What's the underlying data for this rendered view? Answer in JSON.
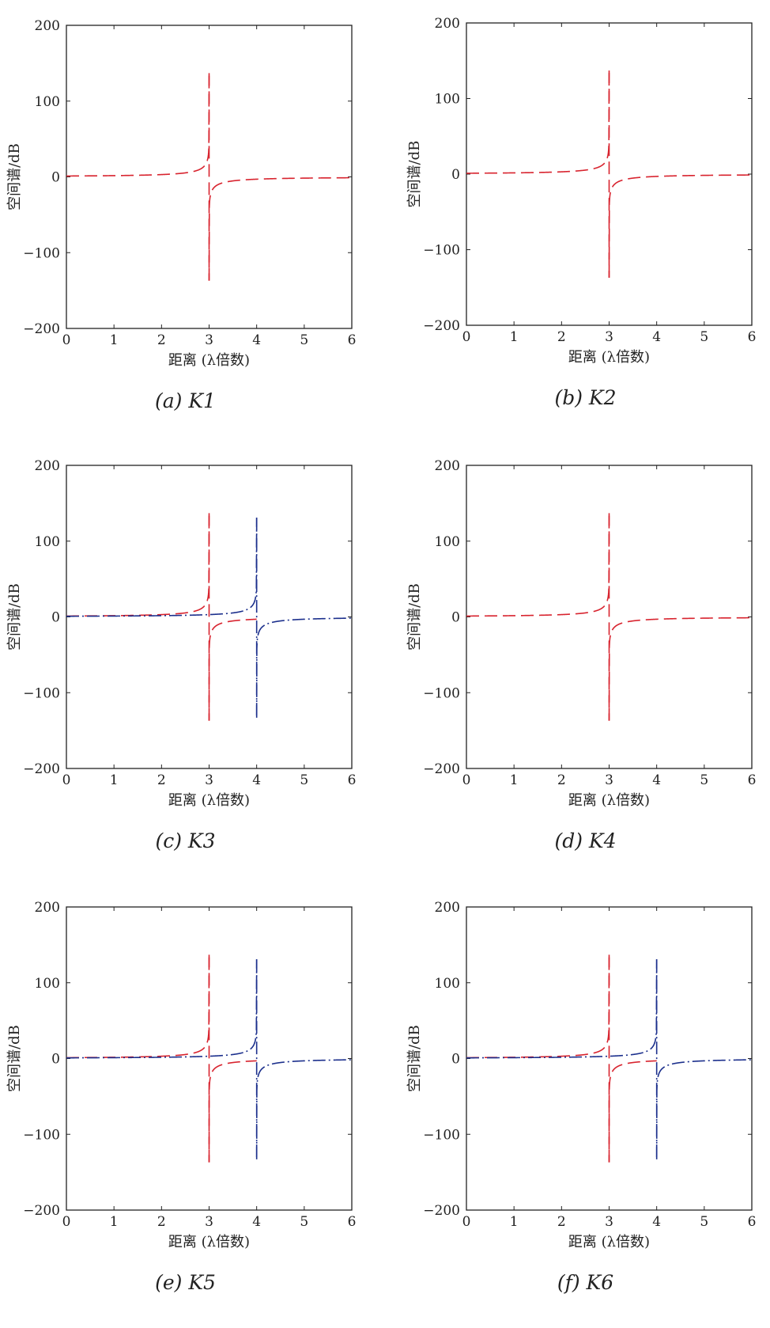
{
  "chart_data": [
    {
      "type": "line",
      "caption": "(a)  K1",
      "xlabel": "距离 (λ倍数)",
      "ylabel": "空间谱/dB",
      "xlim": [
        0,
        6
      ],
      "ylim": [
        -200,
        200
      ],
      "xticks": [
        0,
        1,
        2,
        3,
        4,
        5,
        6
      ],
      "yticks": [
        200,
        100,
        0,
        -100,
        -200
      ],
      "ytick_labels": [
        "200",
        "100",
        "0",
        "−100",
        "−200"
      ],
      "series": [
        {
          "color": "#d8232e",
          "style": "dashed",
          "peak_x": 3.0,
          "peak_max": 137,
          "peak_min": -137,
          "x_range": [
            0,
            6
          ]
        }
      ]
    },
    {
      "type": "line",
      "caption": "(b)  K2",
      "xlabel": "距离 (λ倍数)",
      "ylabel": "空间谱/dB",
      "xlim": [
        0,
        6
      ],
      "ylim": [
        -200,
        200
      ],
      "xticks": [
        0,
        1,
        2,
        3,
        4,
        5,
        6
      ],
      "yticks": [
        200,
        100,
        0,
        -100,
        -200
      ],
      "ytick_labels": [
        "200",
        "100",
        "0",
        "−100",
        "−200"
      ],
      "series": [
        {
          "color": "#d8232e",
          "style": "dashed",
          "peak_x": 3.0,
          "peak_max": 137,
          "peak_min": -137,
          "x_range": [
            0,
            6
          ]
        }
      ]
    },
    {
      "type": "line",
      "caption": "(c)  K3",
      "xlabel": "距离 (λ倍数)",
      "ylabel": "空间谱/dB",
      "xlim": [
        0,
        6
      ],
      "ylim": [
        -200,
        200
      ],
      "xticks": [
        0,
        1,
        2,
        3,
        4,
        5,
        6
      ],
      "yticks": [
        200,
        100,
        0,
        -100,
        -200
      ],
      "ytick_labels": [
        "200",
        "100",
        "0",
        "−100",
        "−200"
      ],
      "series": [
        {
          "color": "#d8232e",
          "style": "dashed",
          "peak_x": 3.0,
          "peak_max": 137,
          "peak_min": -137,
          "x_range": [
            0,
            4
          ]
        },
        {
          "color": "#1b2f8c",
          "style": "dashdot",
          "peak_x": 4.0,
          "peak_max": 131,
          "peak_min": -133,
          "x_range": [
            0,
            6
          ]
        }
      ]
    },
    {
      "type": "line",
      "caption": "(d)  K4",
      "xlabel": "距离 (λ倍数)",
      "ylabel": "空间谱/dB",
      "xlim": [
        0,
        6
      ],
      "ylim": [
        -200,
        200
      ],
      "xticks": [
        0,
        1,
        2,
        3,
        4,
        5,
        6
      ],
      "yticks": [
        200,
        100,
        0,
        -100,
        -200
      ],
      "ytick_labels": [
        "200",
        "100",
        "0",
        "−100",
        "−200"
      ],
      "series": [
        {
          "color": "#d8232e",
          "style": "dashed",
          "peak_x": 3.0,
          "peak_max": 137,
          "peak_min": -137,
          "x_range": [
            0,
            6
          ]
        }
      ]
    },
    {
      "type": "line",
      "caption": "(e)  K5",
      "xlabel": "距离 (λ倍数)",
      "ylabel": "空间谱/dB",
      "xlim": [
        0,
        6
      ],
      "ylim": [
        -200,
        200
      ],
      "xticks": [
        0,
        1,
        2,
        3,
        4,
        5,
        6
      ],
      "yticks": [
        200,
        100,
        0,
        -100,
        -200
      ],
      "ytick_labels": [
        "200",
        "100",
        "0",
        "−100",
        "−200"
      ],
      "series": [
        {
          "color": "#d8232e",
          "style": "dashed",
          "peak_x": 3.0,
          "peak_max": 137,
          "peak_min": -137,
          "x_range": [
            0,
            4
          ]
        },
        {
          "color": "#1b2f8c",
          "style": "dashdot",
          "peak_x": 4.0,
          "peak_max": 131,
          "peak_min": -133,
          "x_range": [
            0,
            6
          ]
        }
      ]
    },
    {
      "type": "line",
      "caption": "(f)  K6",
      "xlabel": "距离 (λ倍数)",
      "ylabel": "空间谱/dB",
      "xlim": [
        0,
        6
      ],
      "ylim": [
        -200,
        200
      ],
      "xticks": [
        0,
        1,
        2,
        3,
        4,
        5,
        6
      ],
      "yticks": [
        200,
        100,
        0,
        -100,
        -200
      ],
      "ytick_labels": [
        "200",
        "100",
        "0",
        "−100",
        "−200"
      ],
      "series": [
        {
          "color": "#d8232e",
          "style": "dashed",
          "peak_x": 3.0,
          "peak_max": 137,
          "peak_min": -137,
          "x_range": [
            0,
            4
          ]
        },
        {
          "color": "#1b2f8c",
          "style": "dashdot",
          "peak_x": 4.0,
          "peak_max": 131,
          "peak_min": -133,
          "x_range": [
            0,
            6
          ]
        }
      ]
    }
  ]
}
